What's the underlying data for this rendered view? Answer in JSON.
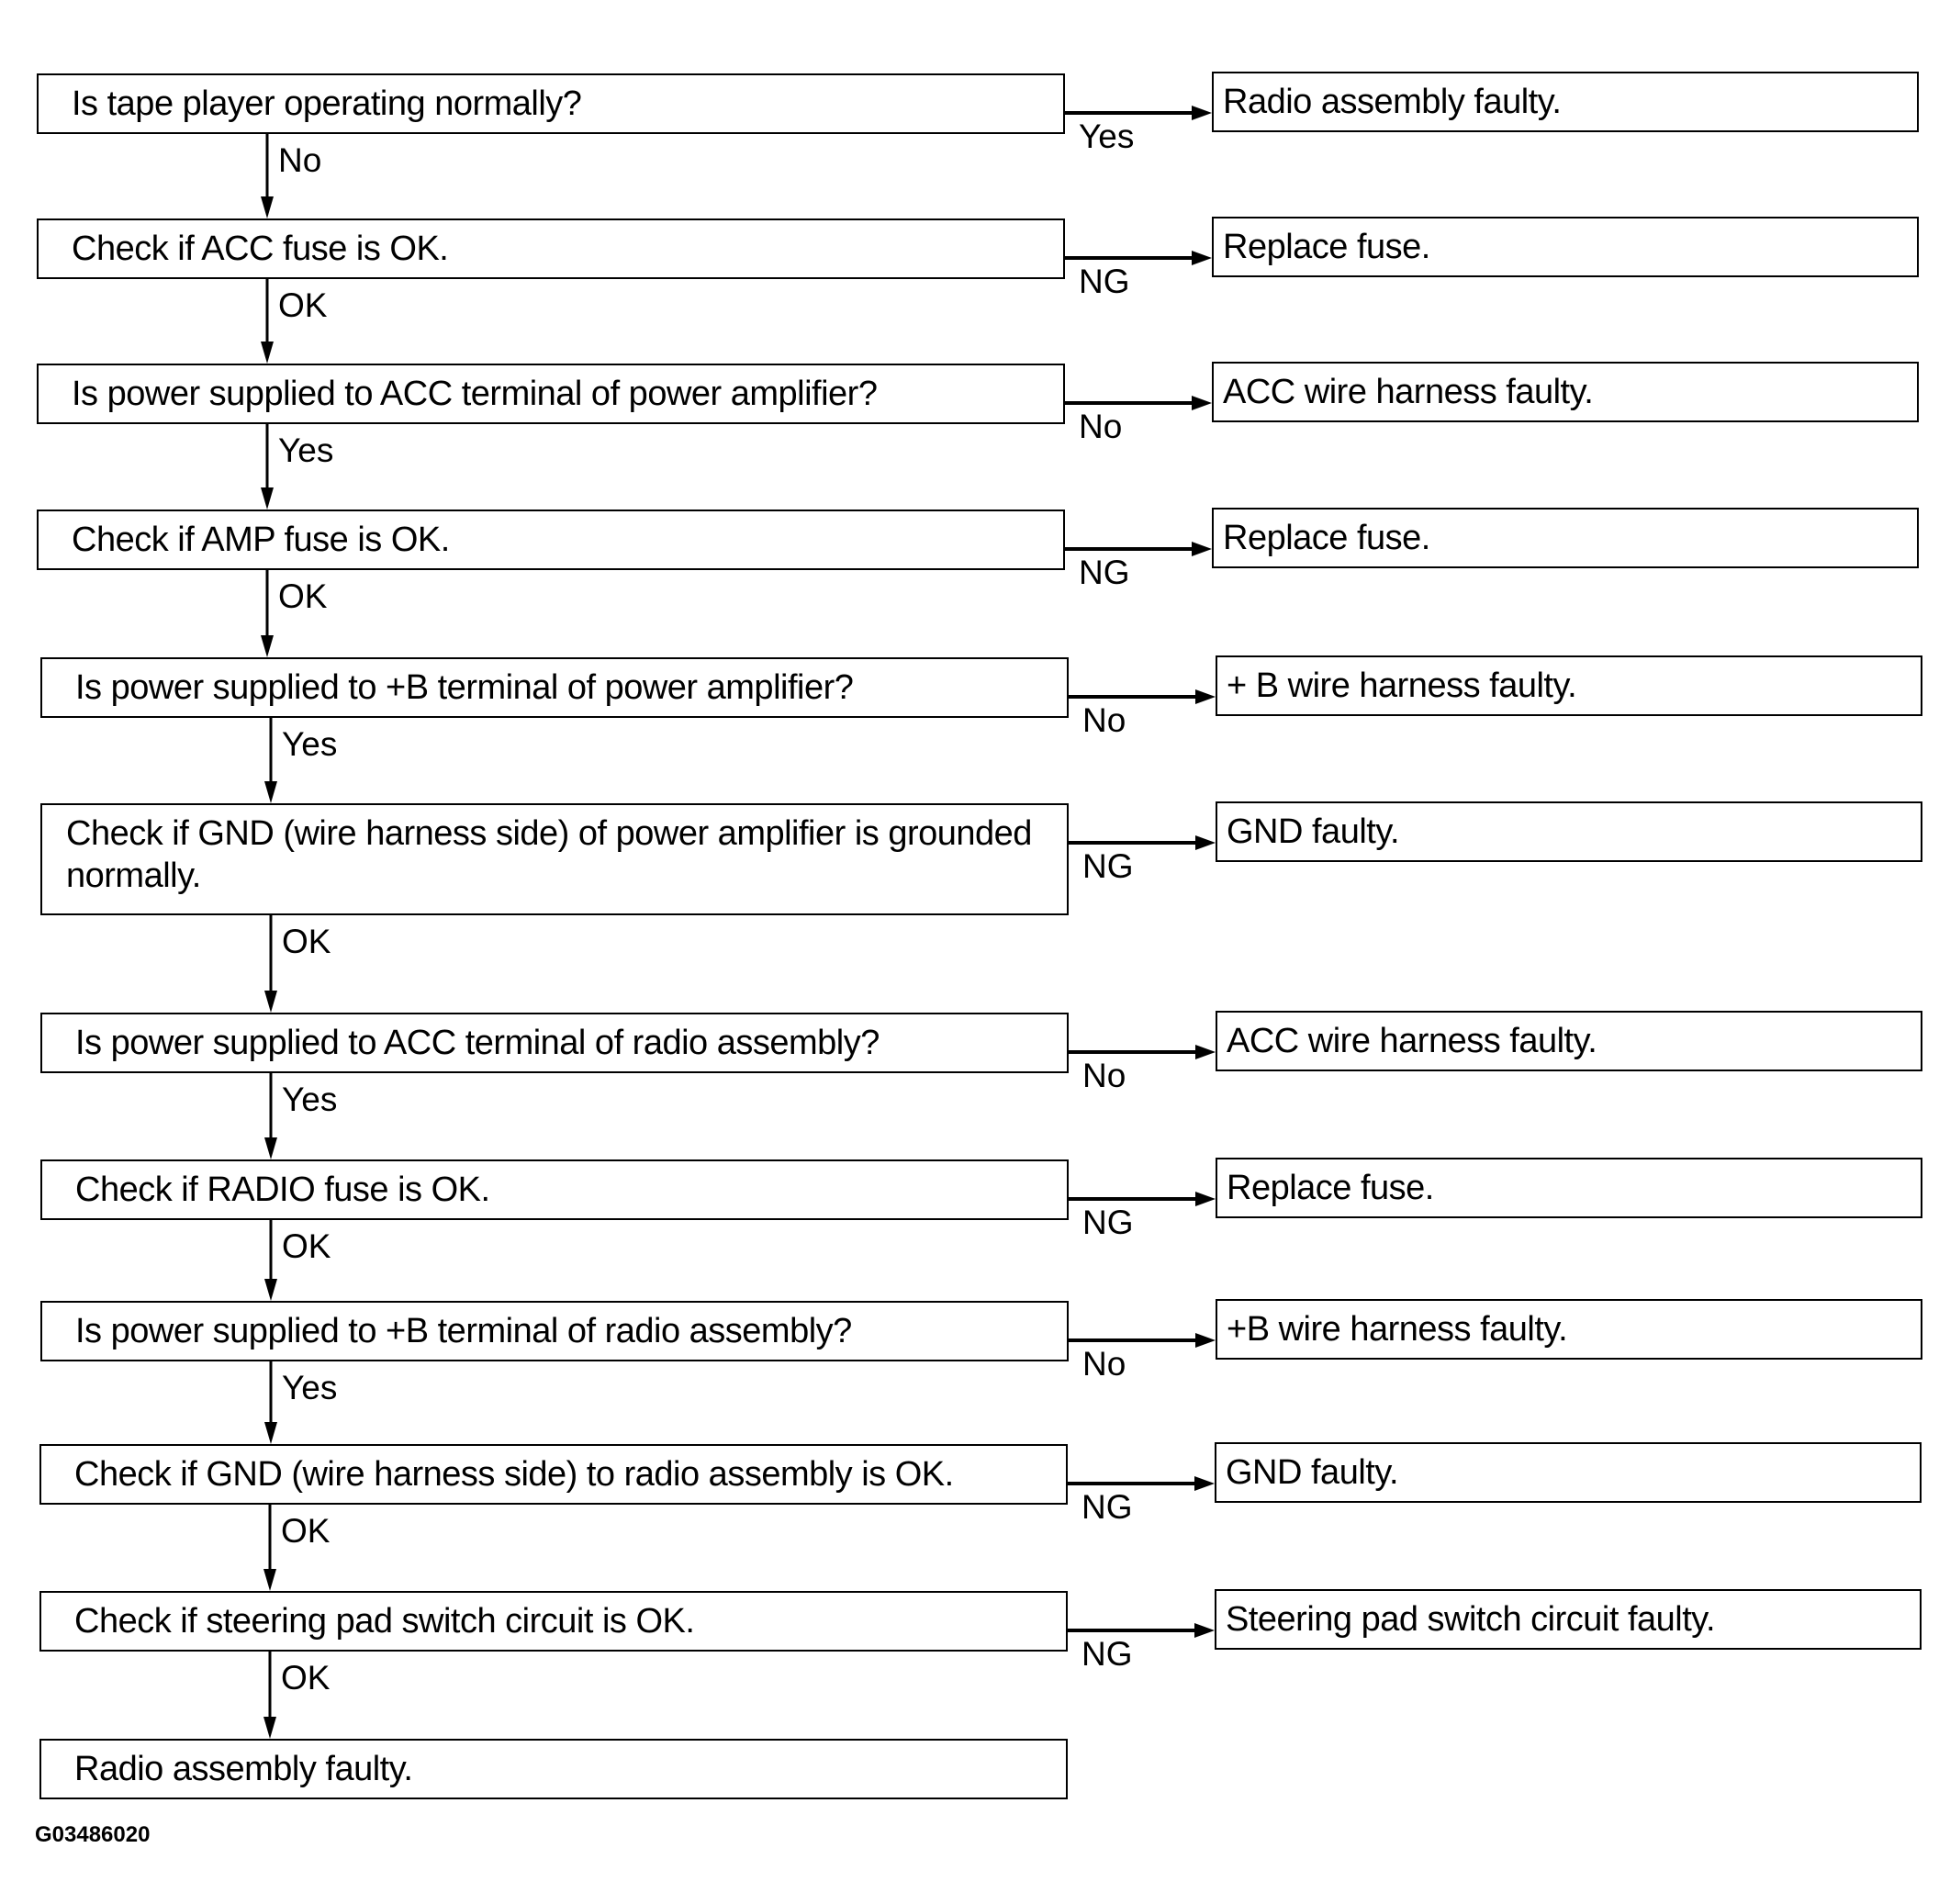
{
  "steps": [
    {
      "text": "Is tape player operating normally?",
      "branch": "Yes",
      "result": "Radio assembly faulty.",
      "next": "No"
    },
    {
      "text": "Check if ACC fuse is OK.",
      "branch": "NG",
      "result": "Replace fuse.",
      "next": "OK"
    },
    {
      "text": "Is power supplied to ACC terminal of power amplifier?",
      "branch": "No",
      "result": "ACC wire harness faulty.",
      "next": "Yes"
    },
    {
      "text": "Check if AMP fuse is OK.",
      "branch": "NG",
      "result": "Replace fuse.",
      "next": "OK"
    },
    {
      "text": "Is power supplied to +B terminal of power amplifier?",
      "branch": "No",
      "result": "+ B wire harness faulty.",
      "next": "Yes"
    },
    {
      "text": "Check if GND (wire harness side) of power amplifier is grounded normally.",
      "branch": "NG",
      "result": "GND faulty.",
      "next": "OK"
    },
    {
      "text": "Is power supplied to ACC terminal of radio assembly?",
      "branch": "No",
      "result": "ACC wire harness faulty.",
      "next": "Yes"
    },
    {
      "text": "Check if RADIO fuse is OK.",
      "branch": "NG",
      "result": "Replace fuse.",
      "next": "OK"
    },
    {
      "text": "Is power supplied to +B terminal of radio assembly?",
      "branch": "No",
      "result": "+B wire harness faulty.",
      "next": "Yes"
    },
    {
      "text": "Check if GND (wire harness side) to radio assembly is OK.",
      "branch": "NG",
      "result": "GND faulty.",
      "next": "OK"
    },
    {
      "text": "Check if steering pad switch circuit is OK.",
      "branch": "NG",
      "result": "Steering pad switch circuit faulty.",
      "next": "OK"
    },
    {
      "text": "Radio assembly faulty."
    }
  ],
  "figure_code": "G03486020"
}
